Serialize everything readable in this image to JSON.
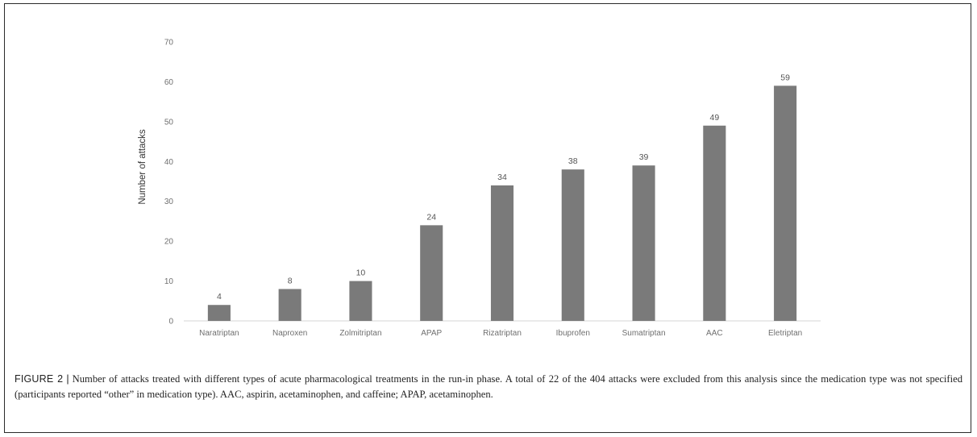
{
  "chart_data": {
    "type": "bar",
    "categories": [
      "Naratriptan",
      "Naproxen",
      "Zolmitriptan",
      "APAP",
      "Rizatriptan",
      "Ibuprofen",
      "Sumatriptan",
      "AAC",
      "Eletriptan"
    ],
    "values": [
      4,
      8,
      10,
      24,
      34,
      38,
      39,
      49,
      59
    ],
    "ylabel": "Number of attacks",
    "xlabel": "",
    "ylim": [
      0,
      70
    ],
    "yticks": [
      0,
      10,
      20,
      30,
      40,
      50,
      60,
      70
    ],
    "grid": false,
    "bar_color": "#7a7a7a",
    "data_labels": true
  },
  "caption": {
    "label": "FIGURE 2",
    "separator": "|",
    "text": "Number of attacks treated with different types of acute pharmacological treatments in the run-in phase. A total of 22 of the 404 attacks were excluded from this analysis since the medication type was not specified (participants reported “other” in medication type). AAC, aspirin, acetaminophen, and caffeine; APAP, acetaminophen."
  }
}
